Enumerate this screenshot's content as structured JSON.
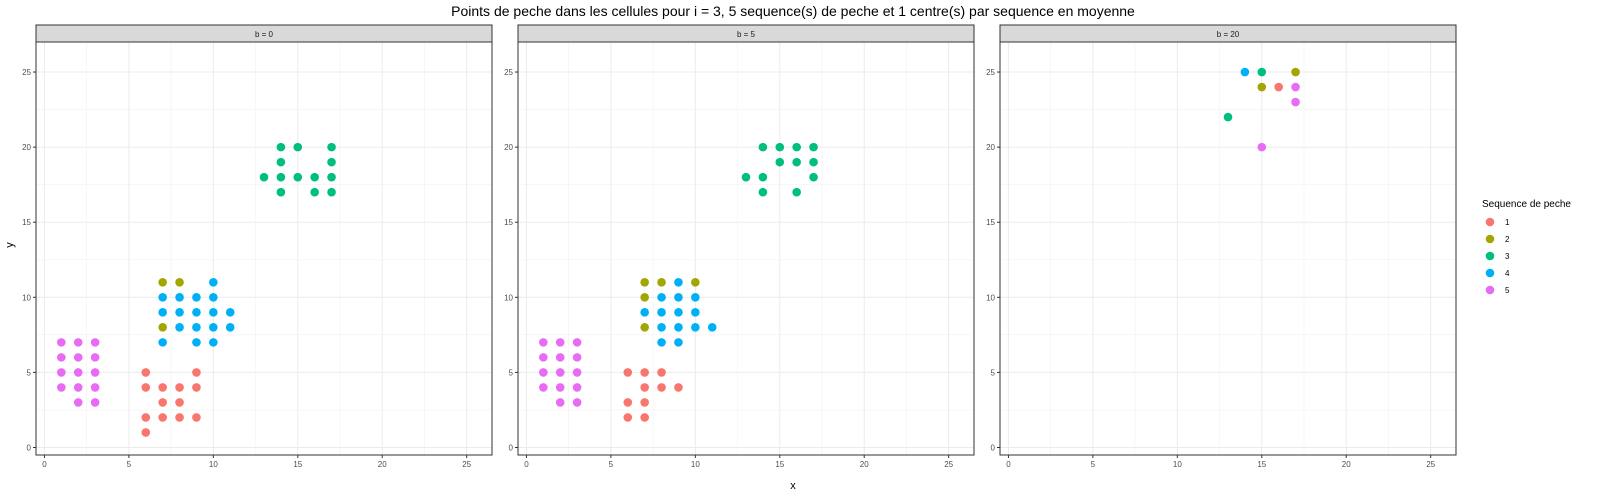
{
  "chart_data": {
    "type": "scatter",
    "title": "Points de peche dans les cellules pour i = 3, 5 sequence(s) de peche et 1 centre(s) par sequence en moyenne",
    "xlabel": "x",
    "ylabel": "y",
    "xlim": [
      -0.5,
      26.5
    ],
    "ylim": [
      -0.5,
      27
    ],
    "x_ticks": [
      0,
      5,
      10,
      15,
      20,
      25
    ],
    "y_ticks": [
      0,
      5,
      10,
      15,
      20,
      25
    ],
    "grid": true,
    "legend": {
      "title": "Sequence de peche",
      "position": "right",
      "entries": [
        {
          "label": "1",
          "color": "#F8766D"
        },
        {
          "label": "2",
          "color": "#A3A500"
        },
        {
          "label": "3",
          "color": "#00BF7D"
        },
        {
          "label": "4",
          "color": "#00B0F6"
        },
        {
          "label": "5",
          "color": "#E76BF3"
        }
      ]
    },
    "panels": [
      {
        "label": "b = 0",
        "series": [
          {
            "name": "1",
            "points": [
              [
                6,
                1
              ],
              [
                6,
                2
              ],
              [
                6,
                4
              ],
              [
                6,
                5
              ],
              [
                7,
                2
              ],
              [
                7,
                3
              ],
              [
                7,
                4
              ],
              [
                8,
                2
              ],
              [
                8,
                3
              ],
              [
                8,
                4
              ],
              [
                9,
                2
              ],
              [
                9,
                4
              ],
              [
                9,
                5
              ]
            ]
          },
          {
            "name": "2",
            "points": [
              [
                7,
                11
              ],
              [
                8,
                11
              ],
              [
                7,
                8
              ]
            ]
          },
          {
            "name": "3",
            "points": [
              [
                13,
                18
              ],
              [
                14,
                17
              ],
              [
                14,
                18
              ],
              [
                14,
                19
              ],
              [
                14,
                20
              ],
              [
                15,
                18
              ],
              [
                15,
                20
              ],
              [
                16,
                17
              ],
              [
                16,
                18
              ],
              [
                17,
                17
              ],
              [
                17,
                18
              ],
              [
                17,
                19
              ],
              [
                17,
                20
              ]
            ]
          },
          {
            "name": "4",
            "points": [
              [
                7,
                7
              ],
              [
                7,
                9
              ],
              [
                7,
                10
              ],
              [
                8,
                8
              ],
              [
                8,
                9
              ],
              [
                8,
                10
              ],
              [
                9,
                7
              ],
              [
                9,
                8
              ],
              [
                9,
                9
              ],
              [
                9,
                10
              ],
              [
                10,
                7
              ],
              [
                10,
                8
              ],
              [
                10,
                9
              ],
              [
                10,
                10
              ],
              [
                10,
                11
              ],
              [
                11,
                8
              ],
              [
                11,
                9
              ]
            ]
          },
          {
            "name": "5",
            "points": [
              [
                1,
                4
              ],
              [
                1,
                5
              ],
              [
                1,
                6
              ],
              [
                1,
                7
              ],
              [
                2,
                3
              ],
              [
                2,
                4
              ],
              [
                2,
                5
              ],
              [
                2,
                6
              ],
              [
                2,
                7
              ],
              [
                3,
                3
              ],
              [
                3,
                4
              ],
              [
                3,
                5
              ],
              [
                3,
                6
              ],
              [
                3,
                7
              ]
            ]
          }
        ]
      },
      {
        "label": "b = 5",
        "series": [
          {
            "name": "1",
            "points": [
              [
                6,
                2
              ],
              [
                6,
                3
              ],
              [
                6,
                5
              ],
              [
                7,
                2
              ],
              [
                7,
                3
              ],
              [
                7,
                4
              ],
              [
                7,
                5
              ],
              [
                8,
                4
              ],
              [
                8,
                5
              ],
              [
                9,
                4
              ]
            ]
          },
          {
            "name": "2",
            "points": [
              [
                7,
                8
              ],
              [
                7,
                10
              ],
              [
                7,
                11
              ],
              [
                8,
                11
              ],
              [
                10,
                11
              ]
            ]
          },
          {
            "name": "3",
            "points": [
              [
                13,
                18
              ],
              [
                14,
                17
              ],
              [
                14,
                18
              ],
              [
                14,
                20
              ],
              [
                15,
                19
              ],
              [
                15,
                20
              ],
              [
                16,
                17
              ],
              [
                16,
                19
              ],
              [
                16,
                20
              ],
              [
                17,
                18
              ],
              [
                17,
                19
              ],
              [
                17,
                20
              ]
            ]
          },
          {
            "name": "4",
            "points": [
              [
                7,
                9
              ],
              [
                8,
                7
              ],
              [
                8,
                8
              ],
              [
                8,
                9
              ],
              [
                8,
                10
              ],
              [
                9,
                7
              ],
              [
                9,
                8
              ],
              [
                9,
                9
              ],
              [
                9,
                10
              ],
              [
                9,
                11
              ],
              [
                10,
                8
              ],
              [
                10,
                9
              ],
              [
                10,
                10
              ],
              [
                11,
                8
              ]
            ]
          },
          {
            "name": "5",
            "points": [
              [
                1,
                4
              ],
              [
                1,
                5
              ],
              [
                1,
                6
              ],
              [
                1,
                7
              ],
              [
                2,
                3
              ],
              [
                2,
                4
              ],
              [
                2,
                5
              ],
              [
                2,
                6
              ],
              [
                2,
                7
              ],
              [
                3,
                3
              ],
              [
                3,
                4
              ],
              [
                3,
                5
              ],
              [
                3,
                6
              ],
              [
                3,
                7
              ]
            ]
          }
        ]
      },
      {
        "label": "b = 20",
        "series": [
          {
            "name": "1",
            "points": [
              [
                16,
                24
              ]
            ]
          },
          {
            "name": "2",
            "points": [
              [
                15,
                24
              ],
              [
                17,
                25
              ]
            ]
          },
          {
            "name": "3",
            "points": [
              [
                13,
                22
              ],
              [
                15,
                25
              ]
            ]
          },
          {
            "name": "4",
            "points": [
              [
                14,
                25
              ]
            ]
          },
          {
            "name": "5",
            "points": [
              [
                15,
                20
              ],
              [
                17,
                24
              ],
              [
                17,
                23
              ]
            ]
          }
        ]
      }
    ]
  }
}
